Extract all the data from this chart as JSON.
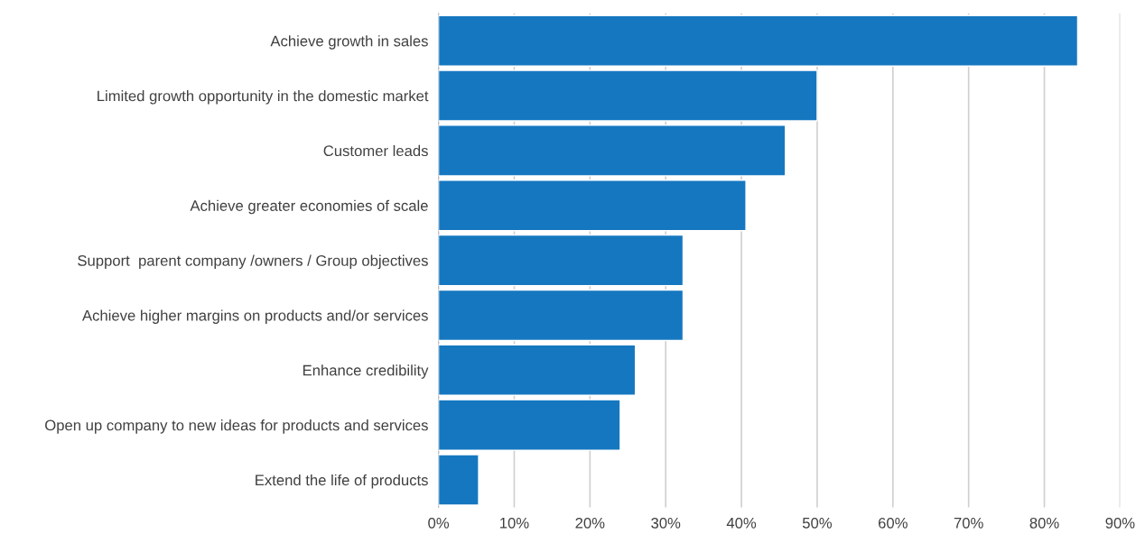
{
  "chart_data": {
    "type": "bar",
    "orientation": "horizontal",
    "categories": [
      "Achieve growth in sales",
      "Limited growth opportunity in the domestic market",
      "Customer leads",
      "Achieve greater economies of scale",
      "Support  parent company /owners / Group objectives",
      "Achieve higher margins on products and/or services",
      "Enhance credibility",
      "Open up company to new ideas for products and services",
      "Extend the life of products"
    ],
    "values": [
      84.4,
      50.0,
      45.8,
      40.6,
      32.3,
      32.3,
      26.0,
      24.0,
      5.3
    ],
    "color": "#1577c0",
    "xlim": [
      0,
      90
    ],
    "xticks": [
      {
        "value": 0,
        "label": "0%"
      },
      {
        "value": 10,
        "label": "10%"
      },
      {
        "value": 20,
        "label": "20%"
      },
      {
        "value": 30,
        "label": "30%"
      },
      {
        "value": 40,
        "label": "40%"
      },
      {
        "value": 50,
        "label": "50%"
      },
      {
        "value": 60,
        "label": "60%"
      },
      {
        "value": 70,
        "label": "70%"
      },
      {
        "value": 80,
        "label": "80%"
      },
      {
        "value": 90,
        "label": "90%"
      }
    ],
    "grid": "x",
    "legend": false
  }
}
